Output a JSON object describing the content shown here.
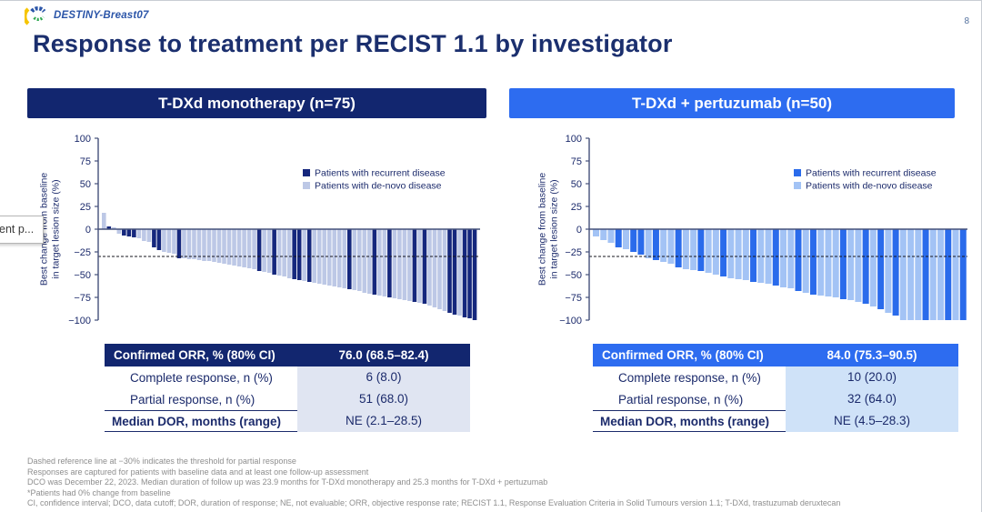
{
  "window": {
    "page_number": "8"
  },
  "logo": {
    "label": "DESTINY-Breast07"
  },
  "title": "Response to treatment per RECIST 1.1 by investigator",
  "overlay": {
    "fragment_text": "ent p..."
  },
  "colors": {
    "left_header_bg": "#12266F",
    "right_header_bg": "#2D6CF0",
    "left_recurrent": "#15277D",
    "left_denovo": "#BDC8E6",
    "right_recurrent": "#2A6BEB",
    "right_denovo": "#A3C3F5",
    "navy_text": "#1B2A6B",
    "left_value_cell": "#E0E5F2",
    "right_value_cell": "#CFE2F8"
  },
  "panels": [
    {
      "header_label": "T-DXd monotherapy (n=75)",
      "table": {
        "orr_label": "Confirmed ORR, % (80% CI)",
        "orr_value": "76.0 (68.5–82.4)",
        "cr_label": "Complete response, n (%)",
        "cr_value": "6 (8.0)",
        "pr_label": "Partial response, n (%)",
        "pr_value": "51 (68.0)",
        "dor_label": "Median DOR, months (range)",
        "dor_value": "NE (2.1–28.5)"
      }
    },
    {
      "header_label": "T-DXd + pertuzumab (n=50)",
      "table": {
        "orr_label": "Confirmed ORR, % (80% CI)",
        "orr_value": "84.0 (75.3–90.5)",
        "cr_label": "Complete response, n (%)",
        "cr_value": "10 (20.0)",
        "pr_label": "Partial response, n (%)",
        "pr_value": "32 (64.0)",
        "dor_label": "Median DOR, months (range)",
        "dor_value": "NE (4.5–28.3)"
      }
    }
  ],
  "chart_data": [
    {
      "type": "bar",
      "title": "T-DXd monotherapy (n=75)",
      "ylabel": "Best change from baseline in target lesion size (%)",
      "ylabel_lines": [
        "Best change from baseline",
        "in target lesion size (%)"
      ],
      "ylim": [
        -100,
        100
      ],
      "yticks": [
        100,
        75,
        50,
        25,
        0,
        -25,
        -50,
        -75,
        -100
      ],
      "reference_line": -30,
      "grid": false,
      "legend_position": "top-right",
      "series": [
        {
          "name": "Patients with recurrent disease",
          "color": "#15277D"
        },
        {
          "name": "Patients with de-novo disease",
          "color": "#BDC8E6"
        }
      ],
      "values": [
        18,
        3,
        2,
        -5,
        -7,
        -8,
        -9,
        -10,
        -13,
        -14,
        -20,
        -23,
        -25,
        -26,
        -27,
        -32,
        -32,
        -33,
        -33,
        -34,
        -35,
        -35,
        -36,
        -37,
        -38,
        -39,
        -40,
        -41,
        -42,
        -43,
        -44,
        -46,
        -47,
        -48,
        -50,
        -51,
        -52,
        -54,
        -55,
        -56,
        -57,
        -58,
        -59,
        -60,
        -61,
        -62,
        -63,
        -64,
        -65,
        -66,
        -67,
        -68,
        -70,
        -71,
        -72,
        -73,
        -74,
        -75,
        -76,
        -77,
        -78,
        -79,
        -80,
        -81,
        -82,
        -84,
        -86,
        -88,
        -90,
        -92,
        -94,
        -95,
        -97,
        -98,
        -100
      ],
      "series_index": [
        1,
        0,
        1,
        1,
        0,
        0,
        0,
        1,
        1,
        1,
        0,
        0,
        1,
        1,
        1,
        0,
        1,
        1,
        1,
        1,
        1,
        1,
        1,
        1,
        1,
        1,
        1,
        1,
        1,
        1,
        1,
        0,
        1,
        1,
        0,
        1,
        1,
        1,
        0,
        0,
        1,
        0,
        1,
        1,
        1,
        1,
        1,
        1,
        1,
        0,
        1,
        1,
        1,
        1,
        0,
        1,
        1,
        0,
        1,
        1,
        1,
        1,
        0,
        1,
        0,
        1,
        1,
        1,
        1,
        0,
        0,
        1,
        0,
        0,
        0
      ]
    },
    {
      "type": "bar",
      "title": "T-DXd + pertuzumab (n=50)",
      "ylabel": "Best change from baseline in target lesion size (%)",
      "ylabel_lines": [
        "Best change from baseline",
        "in target lesion size (%)"
      ],
      "ylim": [
        -100,
        100
      ],
      "yticks": [
        100,
        75,
        50,
        25,
        0,
        -25,
        -50,
        -75,
        -100
      ],
      "reference_line": -30,
      "grid": false,
      "legend_position": "top-right",
      "series": [
        {
          "name": "Patients with recurrent disease",
          "color": "#2A6BEB"
        },
        {
          "name": "Patients with de-novo disease",
          "color": "#A3C3F5"
        }
      ],
      "values": [
        -8,
        -12,
        -15,
        -20,
        -22,
        -25,
        -28,
        -32,
        -34,
        -36,
        -38,
        -42,
        -44,
        -45,
        -46,
        -48,
        -50,
        -52,
        -54,
        -55,
        -56,
        -58,
        -59,
        -60,
        -62,
        -64,
        -65,
        -68,
        -70,
        -72,
        -73,
        -74,
        -75,
        -77,
        -78,
        -80,
        -82,
        -85,
        -88,
        -92,
        -95,
        -100,
        -100,
        -100,
        -100,
        -100,
        -100,
        -100,
        -100,
        -100
      ],
      "series_index": [
        1,
        1,
        1,
        0,
        1,
        0,
        0,
        1,
        0,
        1,
        1,
        0,
        1,
        1,
        0,
        1,
        1,
        0,
        1,
        1,
        1,
        0,
        1,
        1,
        0,
        1,
        1,
        0,
        1,
        0,
        1,
        1,
        1,
        0,
        1,
        1,
        0,
        1,
        0,
        1,
        0,
        1,
        1,
        1,
        0,
        1,
        1,
        0,
        1,
        0
      ]
    }
  ],
  "footnotes": [
    "Dashed reference line at −30% indicates the threshold for partial response",
    "Responses are captured for patients with baseline data and at least one follow-up assessment",
    "DCO was December 22, 2023. Median duration of follow up was 23.9 months for T-DXd monotherapy and 25.3 months for T-DXd + pertuzumab",
    "*Patients had 0% change from baseline",
    "CI, confidence interval; DCO, data cutoff; DOR, duration of response; NE, not evaluable; ORR, objective response rate; RECIST 1.1, Response Evaluation Criteria in Solid Tumours version 1.1; T-DXd, trastuzumab  deruxtecan"
  ]
}
